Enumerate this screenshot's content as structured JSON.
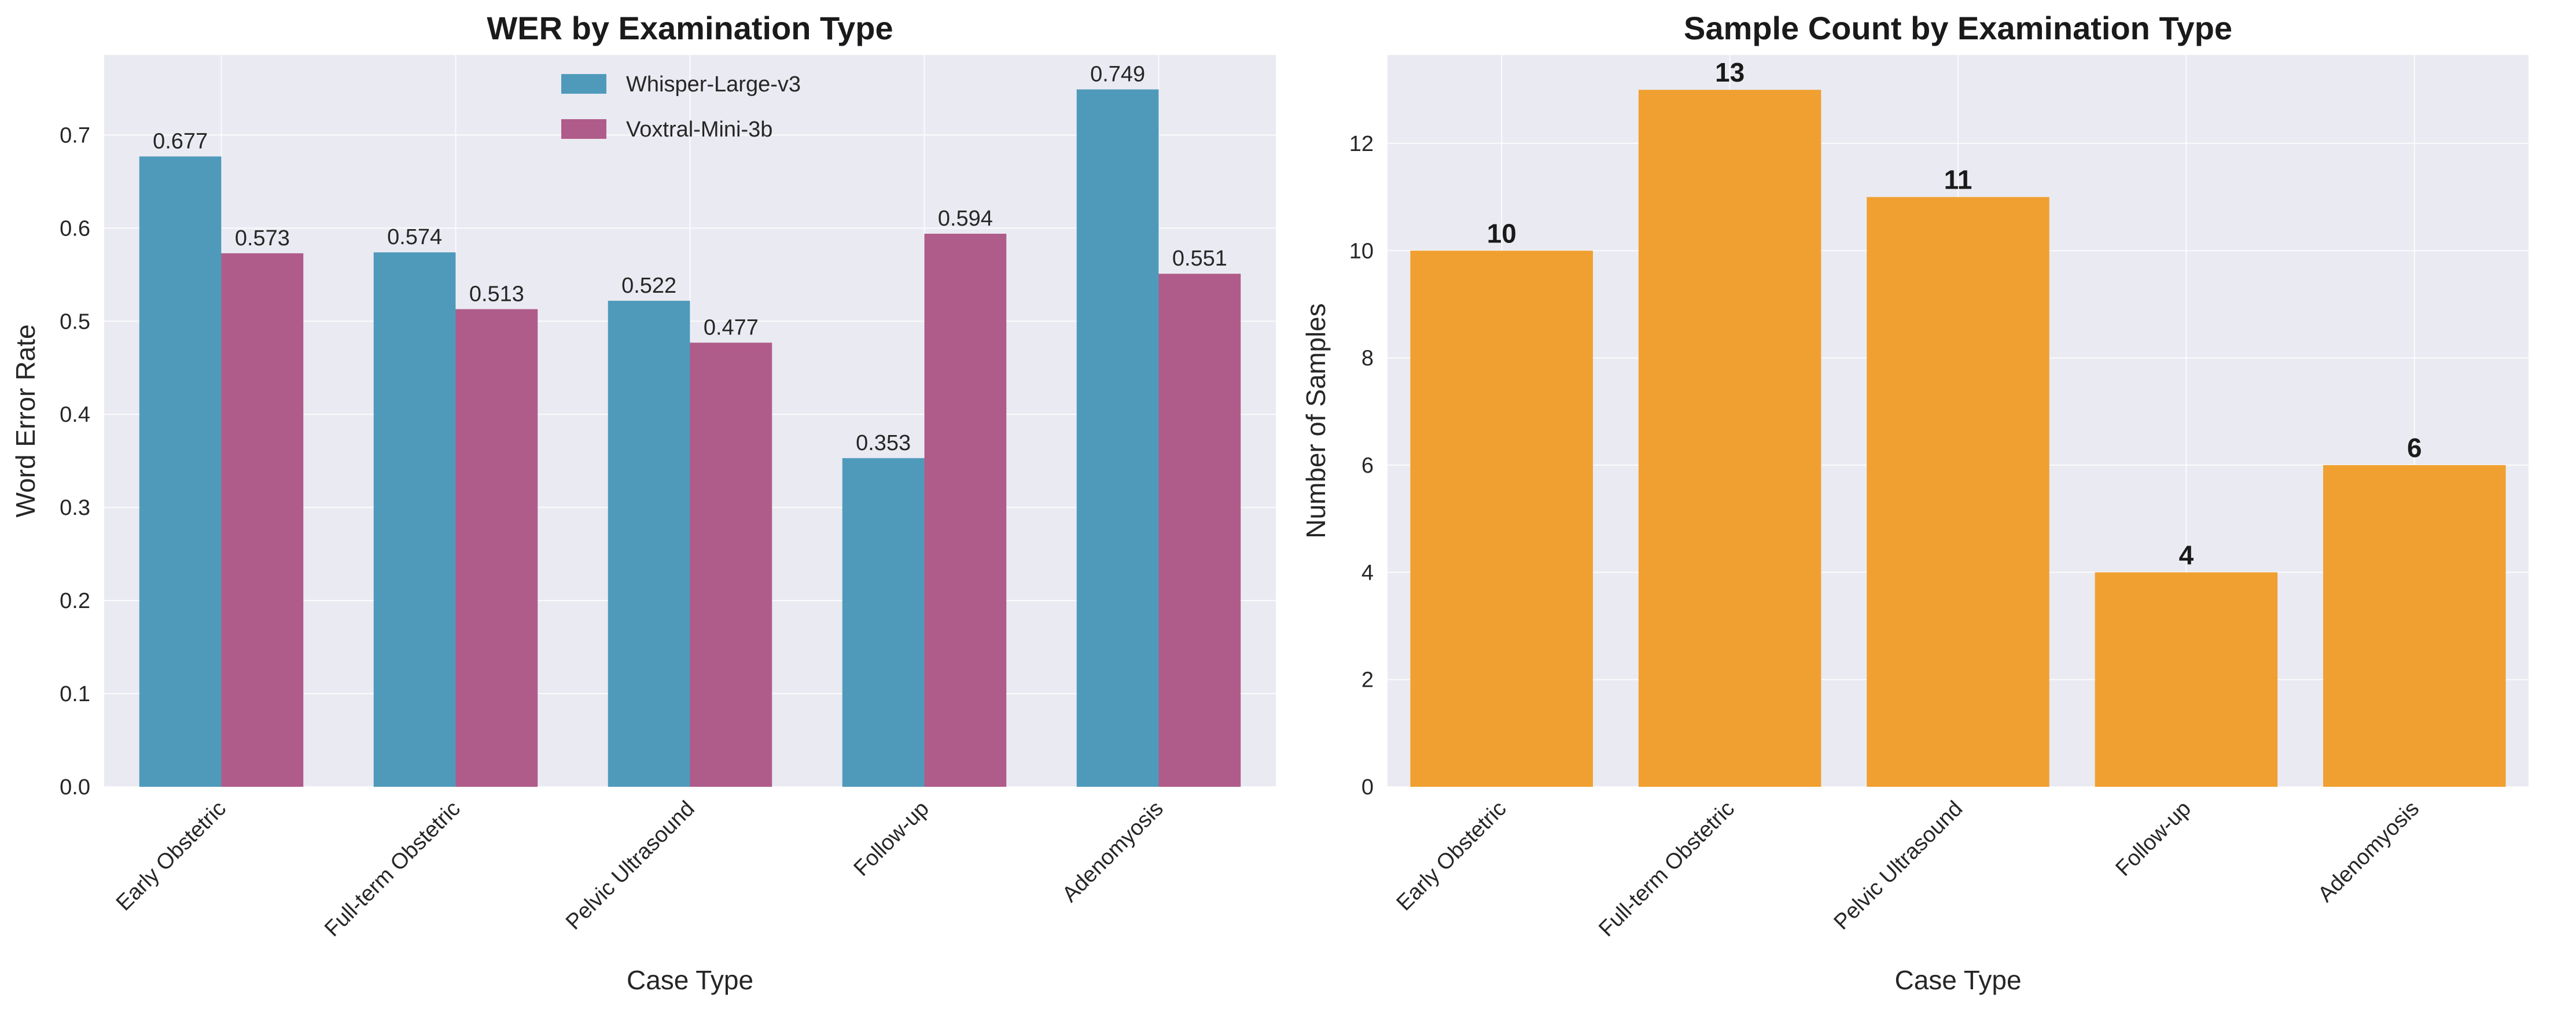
{
  "chart_data": [
    {
      "type": "bar",
      "title": "WER by Examination Type",
      "xlabel": "Case Type",
      "ylabel": "Word Error Rate",
      "categories": [
        "Early Obstetric",
        "Full-term Obstetric",
        "Pelvic Ultrasound",
        "Follow-up",
        "Adenomyosis"
      ],
      "series": [
        {
          "name": "Whisper-Large-v3",
          "color": "#4f9abb",
          "values": [
            0.677,
            0.574,
            0.522,
            0.353,
            0.749
          ],
          "labels": [
            "0.677",
            "0.574",
            "0.522",
            "0.353",
            "0.749"
          ]
        },
        {
          "name": "Voxtral-Mini-3b",
          "color": "#b05c8a",
          "values": [
            0.573,
            0.513,
            0.477,
            0.594,
            0.551
          ],
          "labels": [
            "0.573",
            "0.513",
            "0.477",
            "0.594",
            "0.551"
          ]
        }
      ],
      "ylim": [
        0,
        0.786
      ],
      "yticks": [
        0.0,
        0.1,
        0.2,
        0.3,
        0.4,
        0.5,
        0.6,
        0.7
      ],
      "ytick_labels": [
        "0.0",
        "0.1",
        "0.2",
        "0.3",
        "0.4",
        "0.5",
        "0.6",
        "0.7"
      ],
      "grid": true,
      "legend": "upper-center"
    },
    {
      "type": "bar",
      "title": "Sample Count by Examination Type",
      "xlabel": "Case Type",
      "ylabel": "Number of Samples",
      "categories": [
        "Early Obstetric",
        "Full-term Obstetric",
        "Pelvic Ultrasound",
        "Follow-up",
        "Adenomyosis"
      ],
      "series": [
        {
          "color": "#f0a030",
          "values": [
            10,
            13,
            11,
            4,
            6
          ],
          "labels": [
            "10",
            "13",
            "11",
            "4",
            "6"
          ]
        }
      ],
      "ylim": [
        0,
        13.65
      ],
      "yticks": [
        0,
        2,
        4,
        6,
        8,
        10,
        12
      ],
      "ytick_labels": [
        "0",
        "2",
        "4",
        "6",
        "8",
        "10",
        "12"
      ],
      "grid": true
    }
  ]
}
